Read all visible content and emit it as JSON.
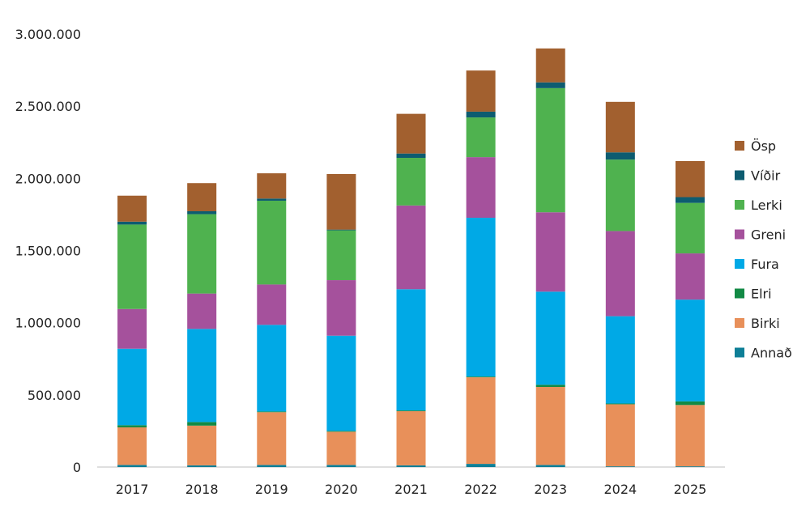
{
  "chart_data": {
    "type": "bar",
    "stacked": true,
    "title": "",
    "xlabel": "",
    "ylabel": "",
    "ylim": [
      0,
      3000000
    ],
    "yticks": [
      0,
      500000,
      1000000,
      1500000,
      2000000,
      2500000,
      3000000
    ],
    "ytick_labels": [
      "0",
      "500.000",
      "1.000.000",
      "1.500.000",
      "2.000.000",
      "2.500.000",
      "3.000.000"
    ],
    "categories": [
      "2017",
      "2018",
      "2019",
      "2020",
      "2021",
      "2022",
      "2023",
      "2024",
      "2025"
    ],
    "grid": false,
    "legend_position": "right",
    "series": [
      {
        "name": "Annað",
        "color": "#0e7f97",
        "values": [
          15000,
          12000,
          15000,
          15000,
          12000,
          22000,
          15000,
          5000,
          5000
        ]
      },
      {
        "name": "Birki",
        "color": "#e8905a",
        "values": [
          260000,
          275000,
          365000,
          230000,
          375000,
          600000,
          540000,
          430000,
          425000
        ]
      },
      {
        "name": "Elri",
        "color": "#128a45",
        "values": [
          15000,
          25000,
          5000,
          5000,
          5000,
          5000,
          15000,
          5000,
          25000
        ]
      },
      {
        "name": "Fura",
        "color": "#00a9e6",
        "values": [
          530000,
          645000,
          600000,
          660000,
          840000,
          1100000,
          645000,
          605000,
          705000
        ]
      },
      {
        "name": "Greni",
        "color": "#a5519c",
        "values": [
          275000,
          245000,
          280000,
          385000,
          580000,
          420000,
          550000,
          590000,
          320000
        ]
      },
      {
        "name": "Lerki",
        "color": "#4fb24f",
        "values": [
          585000,
          550000,
          580000,
          345000,
          330000,
          275000,
          860000,
          495000,
          350000
        ]
      },
      {
        "name": "Víðir",
        "color": "#0d5c70",
        "values": [
          20000,
          20000,
          15000,
          5000,
          30000,
          40000,
          40000,
          50000,
          40000
        ]
      },
      {
        "name": "Ösp",
        "color": "#a2602f",
        "values": [
          180000,
          195000,
          175000,
          385000,
          275000,
          285000,
          235000,
          350000,
          250000
        ]
      }
    ]
  }
}
